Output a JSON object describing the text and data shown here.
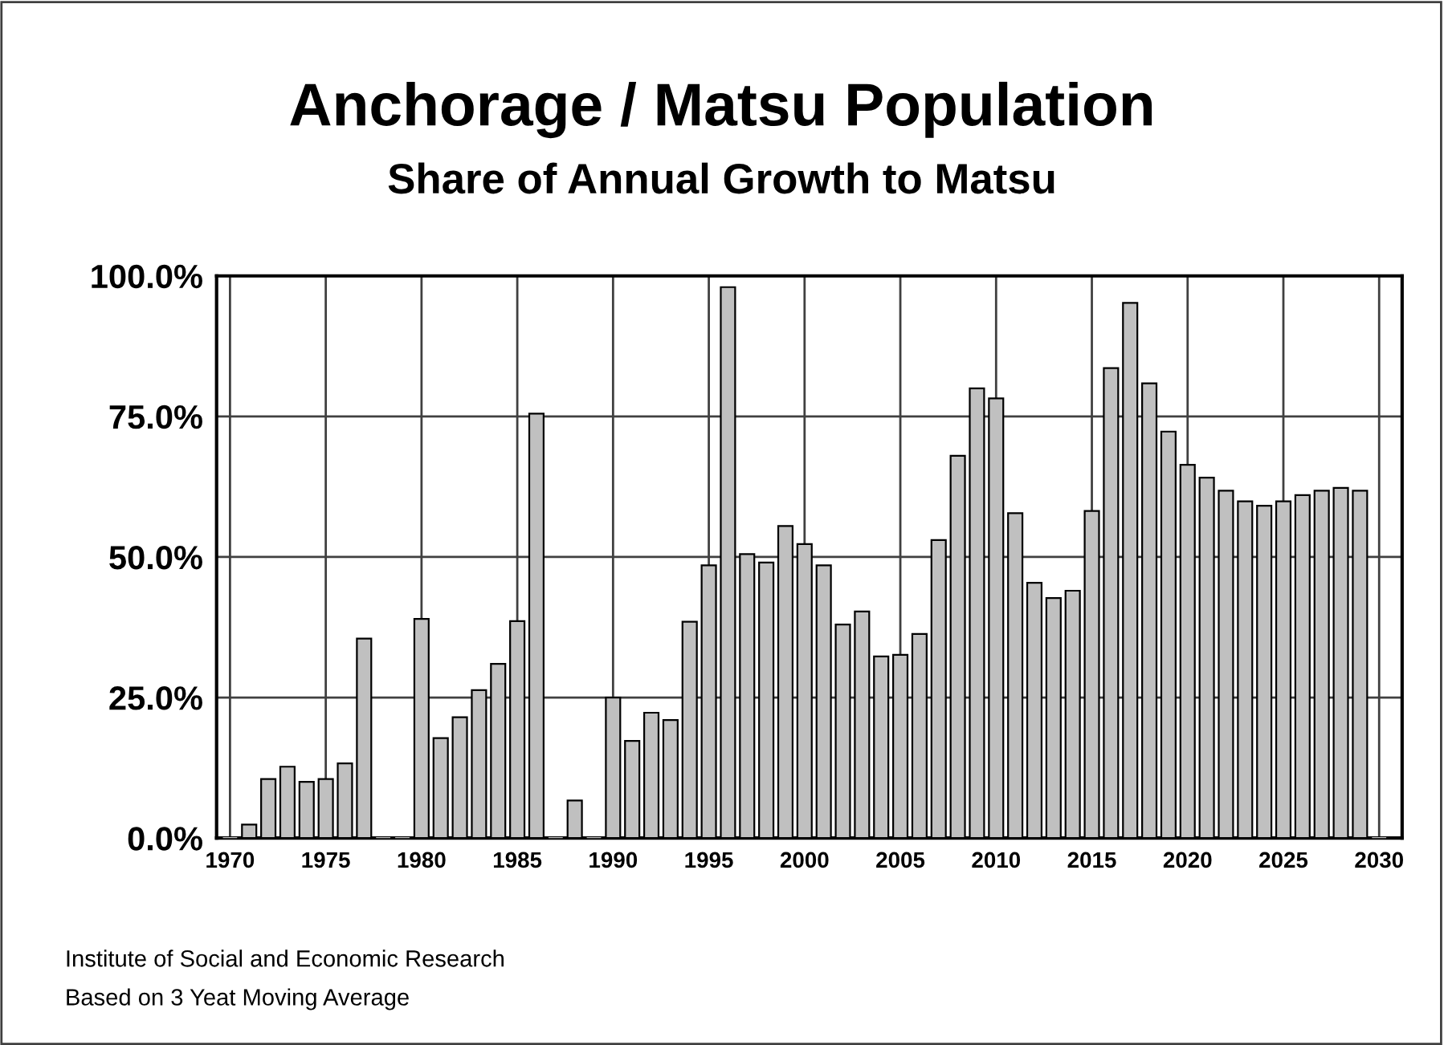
{
  "chart_data": {
    "type": "bar",
    "title": "Anchorage / Matsu Population",
    "subtitle": "Share of Annual Growth to Matsu",
    "x": [
      1970,
      1971,
      1972,
      1973,
      1974,
      1975,
      1976,
      1977,
      1978,
      1979,
      1980,
      1981,
      1982,
      1983,
      1984,
      1985,
      1986,
      1987,
      1988,
      1989,
      1990,
      1991,
      1992,
      1993,
      1994,
      1995,
      1996,
      1997,
      1998,
      1999,
      2000,
      2001,
      2002,
      2003,
      2004,
      2005,
      2006,
      2007,
      2008,
      2009,
      2010,
      2011,
      2012,
      2013,
      2014,
      2015,
      2016,
      2017,
      2018,
      2019,
      2020,
      2021,
      2022,
      2023,
      2024,
      2025,
      2026,
      2027,
      2028,
      2029,
      2030
    ],
    "values": [
      0,
      2.4,
      10.5,
      12.7,
      10,
      10.5,
      13.3,
      35.5,
      0,
      0,
      39,
      17.8,
      21.5,
      26.3,
      31,
      38.6,
      75.5,
      0,
      6.7,
      0,
      25,
      17.3,
      22.3,
      21,
      38.5,
      48.5,
      98,
      50.5,
      49,
      55.5,
      52.3,
      48.5,
      38,
      40.3,
      32.3,
      32.6,
      36.3,
      53,
      68,
      80,
      78.2,
      57.8,
      45.4,
      42.7,
      44,
      58.2,
      83.6,
      95.2,
      80.9,
      72.3,
      66.4,
      64.1,
      61.8,
      59.9,
      59.1,
      59.9,
      61,
      61.8,
      62.3,
      61.8,
      0
    ],
    "color": "#c0c0c0",
    "xlim": [
      1969.3,
      2031.2
    ],
    "xticks": [
      1970,
      1975,
      1980,
      1985,
      1990,
      1995,
      2000,
      2005,
      2010,
      2015,
      2020,
      2025,
      2030
    ],
    "ylim": [
      0,
      100
    ],
    "yticks": [
      {
        "value": 0,
        "label": "0.0%"
      },
      {
        "value": 25,
        "label": "25.0%"
      },
      {
        "value": 50,
        "label": "50.0%"
      },
      {
        "value": 75,
        "label": "75.0%"
      },
      {
        "value": 100,
        "label": "100.0%"
      }
    ],
    "grid": true,
    "annotations": [
      "Institute of Social and Economic Research",
      "Based on 3 Yeat Moving Average"
    ]
  }
}
